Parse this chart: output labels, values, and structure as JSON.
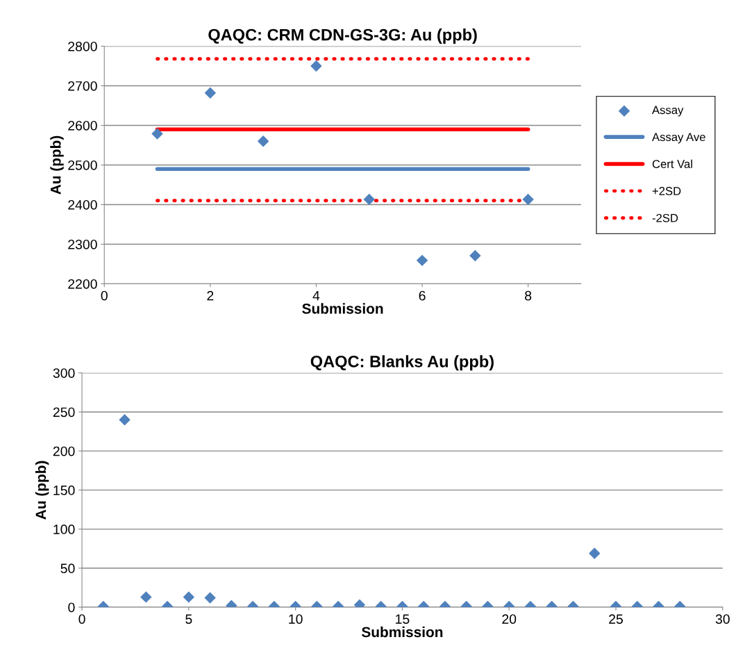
{
  "chart_data": [
    {
      "type": "scatter",
      "title": "QAQC: CRM CDN-GS-3G: Au (ppb)",
      "xlabel": "Submission",
      "ylabel": "Au (ppb)",
      "xlim": [
        0,
        9
      ],
      "xticks": [
        0,
        2,
        4,
        6,
        8
      ],
      "ylim": [
        2200,
        2800
      ],
      "yticks": [
        2200,
        2300,
        2400,
        2500,
        2600,
        2700,
        2800
      ],
      "grid": "y",
      "legend": "right",
      "series": [
        {
          "name": "Assay",
          "color": "#4f81bd",
          "marker": "diamond",
          "x": [
            1,
            2,
            3,
            4,
            5,
            6,
            7,
            8
          ],
          "values": [
            2579,
            2682,
            2560,
            2750,
            2413,
            2259,
            2271,
            2413
          ]
        },
        {
          "name": "Assay Ave",
          "type": "line",
          "color": "#4f81bd",
          "line_style": "solid",
          "x": [
            1,
            8
          ],
          "values": [
            2490,
            2490
          ]
        },
        {
          "name": "Cert Val",
          "type": "line",
          "color": "#ff0000",
          "line_style": "solid",
          "x": [
            1,
            8
          ],
          "values": [
            2590,
            2590
          ]
        },
        {
          "name": "+2SD",
          "type": "line",
          "color": "#ff0000",
          "line_style": "dotted",
          "x": [
            1,
            8
          ],
          "values": [
            2768,
            2768
          ]
        },
        {
          "name": "-2SD",
          "type": "line",
          "color": "#ff0000",
          "line_style": "dotted",
          "x": [
            1,
            8
          ],
          "values": [
            2410,
            2410
          ]
        }
      ]
    },
    {
      "type": "scatter",
      "title": "QAQC: Blanks Au (ppb)",
      "xlabel": "Submission",
      "ylabel": "Au (ppb)",
      "xlim": [
        0,
        30
      ],
      "xticks": [
        0,
        5,
        10,
        15,
        20,
        25,
        30
      ],
      "ylim": [
        0,
        300
      ],
      "yticks": [
        0,
        50,
        100,
        150,
        200,
        250,
        300
      ],
      "grid": "y",
      "legend": false,
      "series": [
        {
          "color": "#4f81bd",
          "marker": "diamond",
          "x": [
            1,
            2,
            3,
            4,
            5,
            6,
            7,
            8,
            9,
            10,
            11,
            12,
            13,
            14,
            15,
            16,
            17,
            18,
            19,
            20,
            21,
            22,
            23,
            24,
            25,
            26,
            27,
            28
          ],
          "values": [
            1,
            240,
            13,
            1,
            13,
            12,
            2,
            1,
            1,
            1,
            1,
            1,
            3,
            1,
            1,
            1,
            1,
            1,
            1,
            1,
            1,
            1,
            1,
            69,
            1,
            1,
            1,
            1
          ]
        }
      ]
    }
  ]
}
